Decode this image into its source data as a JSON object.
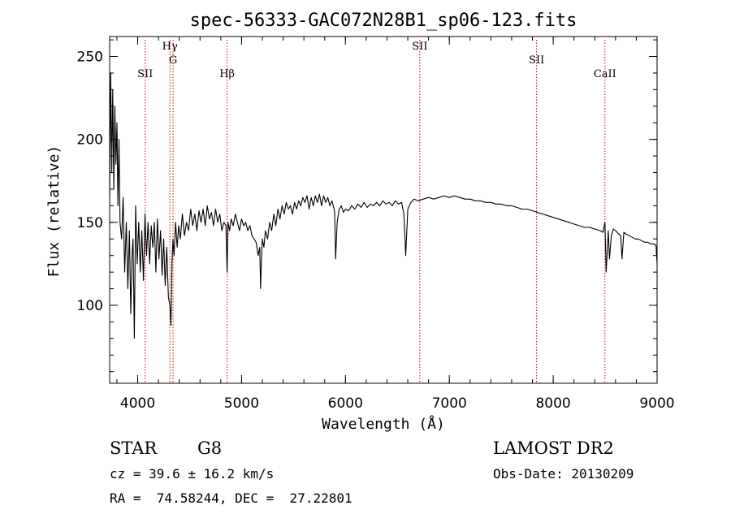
{
  "chart_data": {
    "type": "line",
    "title": "spec-56333-GAC072N28B1_sp06-123.fits",
    "xlabel": "Wavelength (Å)",
    "ylabel": "Flux (relative)",
    "xlim": [
      3730,
      9000
    ],
    "ylim": [
      53,
      262
    ],
    "xticks": [
      4000,
      5000,
      6000,
      7000,
      8000,
      9000
    ],
    "yticks": [
      100,
      150,
      200,
      250
    ],
    "grid": false,
    "series": [
      {
        "color": "#000000",
        "x": [
          3730,
          3740,
          3750,
          3760,
          3770,
          3780,
          3790,
          3800,
          3810,
          3820,
          3830,
          3845,
          3860,
          3875,
          3890,
          3905,
          3920,
          3933,
          3945,
          3955,
          3968,
          3980,
          3995,
          4010,
          4025,
          4040,
          4055,
          4070,
          4085,
          4100,
          4115,
          4130,
          4145,
          4160,
          4175,
          4190,
          4205,
          4220,
          4235,
          4250,
          4265,
          4280,
          4295,
          4310,
          4320,
          4330,
          4340,
          4350,
          4365,
          4380,
          4395,
          4410,
          4430,
          4450,
          4470,
          4490,
          4510,
          4530,
          4550,
          4570,
          4590,
          4610,
          4630,
          4650,
          4670,
          4690,
          4710,
          4730,
          4750,
          4770,
          4790,
          4810,
          4830,
          4850,
          4861,
          4870,
          4885,
          4900,
          4920,
          4940,
          4960,
          4980,
          5000,
          5020,
          5040,
          5060,
          5080,
          5100,
          5120,
          5140,
          5160,
          5175,
          5183,
          5190,
          5200,
          5215,
          5230,
          5250,
          5270,
          5290,
          5310,
          5330,
          5350,
          5370,
          5390,
          5410,
          5430,
          5450,
          5470,
          5490,
          5510,
          5530,
          5550,
          5570,
          5590,
          5610,
          5630,
          5650,
          5670,
          5690,
          5710,
          5730,
          5750,
          5770,
          5790,
          5810,
          5830,
          5850,
          5870,
          5890,
          5896,
          5905,
          5920,
          5940,
          5960,
          5980,
          6000,
          6030,
          6060,
          6090,
          6120,
          6150,
          6180,
          6210,
          6240,
          6270,
          6300,
          6330,
          6360,
          6390,
          6420,
          6450,
          6480,
          6510,
          6540,
          6563,
          6580,
          6600,
          6630,
          6660,
          6700,
          6750,
          6800,
          6850,
          6900,
          6950,
          7000,
          7050,
          7100,
          7150,
          7200,
          7250,
          7300,
          7350,
          7400,
          7450,
          7500,
          7550,
          7600,
          7650,
          7700,
          7750,
          7800,
          7850,
          7900,
          7950,
          8000,
          8050,
          8100,
          8150,
          8200,
          8250,
          8300,
          8350,
          8400,
          8450,
          8480,
          8498,
          8510,
          8530,
          8542,
          8560,
          8580,
          8600,
          8630,
          8650,
          8662,
          8680,
          8700,
          8730,
          8760,
          8790,
          8820,
          8850,
          8880,
          8910,
          8940,
          8970,
          8990,
          9000
        ],
        "y": [
          165,
          240,
          180,
          230,
          170,
          220,
          185,
          210,
          160,
          200,
          150,
          140,
          165,
          120,
          150,
          110,
          145,
          95,
          130,
          140,
          80,
          160,
          125,
          150,
          120,
          145,
          115,
          155,
          130,
          150,
          125,
          148,
          135,
          150,
          120,
          152,
          128,
          145,
          118,
          140,
          112,
          135,
          105,
          100,
          88,
          125,
          140,
          130,
          150,
          135,
          148,
          140,
          155,
          142,
          150,
          145,
          158,
          148,
          155,
          145,
          157,
          150,
          158,
          148,
          160,
          152,
          156,
          148,
          158,
          150,
          155,
          145,
          150,
          148,
          120,
          150,
          145,
          152,
          148,
          155,
          150,
          145,
          152,
          148,
          150,
          145,
          148,
          142,
          140,
          138,
          130,
          135,
          110,
          125,
          140,
          135,
          145,
          140,
          150,
          145,
          155,
          148,
          158,
          152,
          160,
          155,
          162,
          158,
          160,
          155,
          162,
          158,
          163,
          160,
          165,
          162,
          166,
          158,
          165,
          160,
          166,
          162,
          167,
          160,
          166,
          162,
          165,
          160,
          163,
          158,
          156,
          128,
          150,
          158,
          160,
          156,
          158,
          157,
          160,
          158,
          161,
          159,
          162,
          159,
          161,
          160,
          162,
          160,
          163,
          161,
          162,
          160,
          163,
          161,
          162,
          155,
          130,
          158,
          162,
          164,
          163,
          164,
          165,
          164,
          165,
          166,
          165,
          166,
          165,
          164,
          164,
          163,
          163,
          162,
          162,
          161,
          161,
          160,
          160,
          159,
          158,
          158,
          157,
          156,
          155,
          154,
          153,
          152,
          151,
          150,
          149,
          148,
          147,
          147,
          146,
          145,
          144,
          150,
          120,
          145,
          128,
          142,
          146,
          145,
          143,
          142,
          128,
          144,
          143,
          142,
          141,
          140,
          140,
          139,
          138,
          138,
          137,
          137,
          136,
          125
        ]
      }
    ],
    "annotations": [
      {
        "label": "SII",
        "x": 4072,
        "row": 2
      },
      {
        "label": "Hγ",
        "x": 4310,
        "row": 0
      },
      {
        "label": "G",
        "x": 4340,
        "row": 1
      },
      {
        "label": "Hβ",
        "x": 4861,
        "row": 2
      },
      {
        "label": "SII",
        "x": 6716,
        "row": 0
      },
      {
        "label": "SII",
        "x": 7840,
        "row": 1
      },
      {
        "label": "CaII",
        "x": 8498,
        "row": 2
      }
    ],
    "annotation_line_color": "#cc0000"
  },
  "info": {
    "object_class": "STAR",
    "subclass": "G8",
    "survey": "LAMOST DR2",
    "redshift": "cz = 39.6 ± 16.2 km/s",
    "obs_date": "Obs-Date: 20130209",
    "coords": "RA =  74.58244, DEC =  27.22801"
  }
}
